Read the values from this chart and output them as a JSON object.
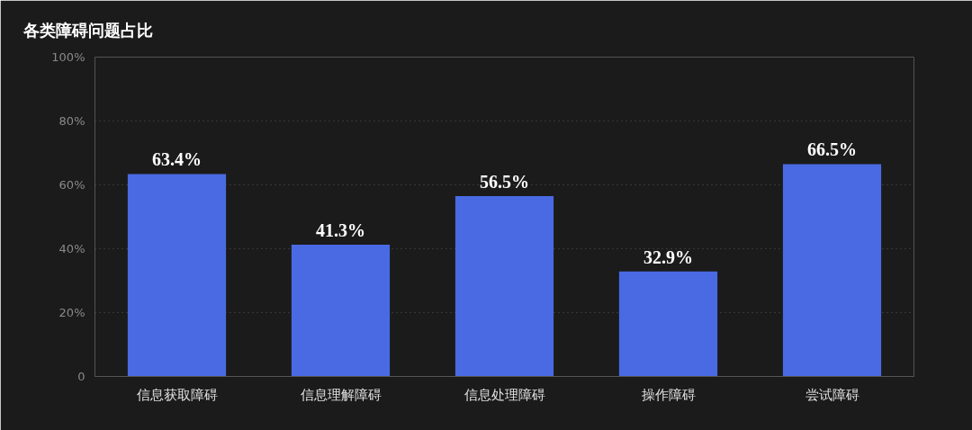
{
  "chart_data": {
    "type": "bar",
    "title": "各类障碍问题占比",
    "categories": [
      "信息获取障碍",
      "信息理解障碍",
      "信息处理障碍",
      "操作障碍",
      "尝试障碍"
    ],
    "values": [
      63.4,
      41.3,
      56.5,
      32.9,
      66.5
    ],
    "value_labels": [
      "63.4%",
      "41.3%",
      "56.5%",
      "32.9%",
      "66.5%"
    ],
    "color": "#4a6ae4",
    "ylim": [
      0,
      100
    ],
    "yticks": [
      0,
      {
        "value": 20,
        "label": "20%"
      },
      {
        "value": 40,
        "label": "40%"
      },
      {
        "value": 60,
        "label": "60%"
      },
      {
        "value": 80,
        "label": "80%"
      },
      {
        "value": 100,
        "label": "100%"
      }
    ],
    "grid": "y"
  }
}
